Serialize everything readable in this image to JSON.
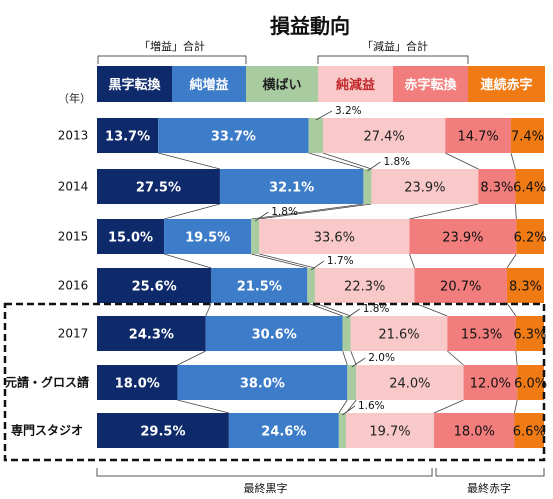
{
  "chart_data": {
    "type": "bar",
    "title": "損益動向",
    "year_axis_label": "（年）",
    "group_labels": {
      "increase": "「増益」合計",
      "decrease": "「減益」合計"
    },
    "bottom_labels": {
      "profit": "最終黒字",
      "loss": "最終赤字"
    },
    "categories": [
      "2013",
      "2014",
      "2015",
      "2016",
      "2017",
      "元請・グロス請",
      "専門スタジオ"
    ],
    "series": [
      {
        "name": "黒字転換",
        "values": [
          13.7,
          27.5,
          15.0,
          25.6,
          24.3,
          18.0,
          29.5
        ],
        "color": "#0e2a6b"
      },
      {
        "name": "純増益",
        "values": [
          33.7,
          32.1,
          19.5,
          21.5,
          30.6,
          38.0,
          24.6
        ],
        "color": "#3d7cc9"
      },
      {
        "name": "横ばい",
        "values": [
          3.2,
          1.8,
          1.8,
          1.7,
          1.8,
          2.0,
          1.6
        ],
        "color": "#a9cba0"
      },
      {
        "name": "純減益",
        "values": [
          27.4,
          23.9,
          33.6,
          22.3,
          21.6,
          24.0,
          19.7
        ],
        "color": "#f9c9c9"
      },
      {
        "name": "赤字転換",
        "values": [
          14.7,
          8.3,
          23.9,
          20.7,
          15.3,
          12.0,
          18.0
        ],
        "color": "#f27d7d"
      },
      {
        "name": "連続赤字",
        "values": [
          7.4,
          6.4,
          6.2,
          8.3,
          6.3,
          6.0,
          6.6
        ],
        "color": "#f07b15"
      }
    ],
    "value_labels": [
      [
        "13.7%",
        "33.7%",
        "3.2%",
        "27.4%",
        "14.7%",
        "7.4%"
      ],
      [
        "27.5%",
        "32.1%",
        "1.8%",
        "23.9%",
        "8.3%",
        "6.4%"
      ],
      [
        "15.0%",
        "19.5%",
        "1.8%",
        "33.6%",
        "23.9%",
        "6.2%"
      ],
      [
        "25.6%",
        "21.5%",
        "1.7%",
        "22.3%",
        "20.7%",
        "8.3%"
      ],
      [
        "24.3%",
        "30.6%",
        "1.8%",
        "21.6%",
        "15.3%",
        "6.3%"
      ],
      [
        "18.0%",
        "38.0%",
        "2.0%",
        "24.0%",
        "12.0%",
        "6.0%"
      ],
      [
        "29.5%",
        "24.6%",
        "1.6%",
        "19.7%",
        "18.0%",
        "6.6%"
      ]
    ],
    "highlighted_categories": [
      "2017",
      "元請・グロス請",
      "専門スタジオ"
    ],
    "stacked": true,
    "percent": true
  }
}
